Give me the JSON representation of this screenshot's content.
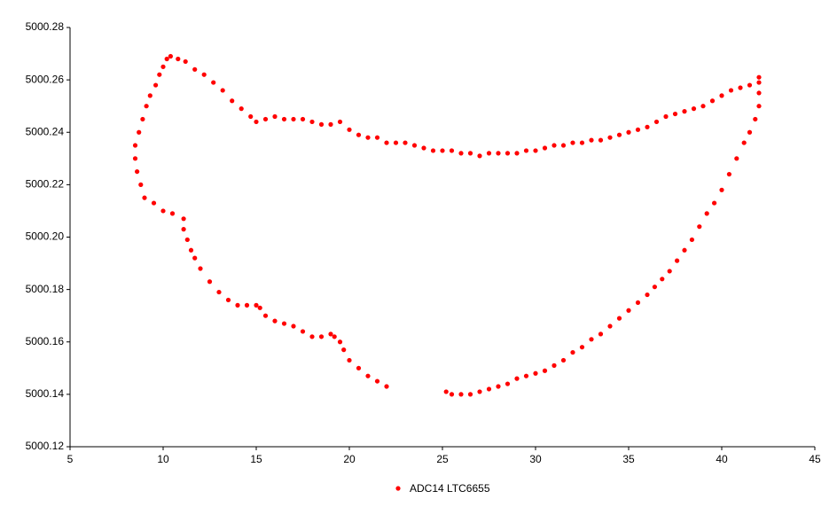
{
  "chart_data": {
    "type": "scatter",
    "xlim": [
      5,
      45
    ],
    "xticks": [
      5,
      10,
      15,
      20,
      25,
      30,
      35,
      40,
      45
    ],
    "ylim": [
      5000.12,
      5000.28
    ],
    "yticks": [
      5000.12,
      5000.14,
      5000.16,
      5000.18,
      {
        "value": 5000.2,
        "label": "5000.20"
      },
      5000.22,
      5000.24,
      5000.26,
      5000.28
    ],
    "grid": false,
    "legend": "bottom",
    "series": [
      {
        "name": "ADC14 LTC6655",
        "color": "#ff0000",
        "x": [
          22,
          21.5,
          21,
          20.5,
          20,
          19.7,
          19.5,
          19.2,
          19,
          18.5,
          18,
          17.5,
          17,
          16.5,
          16,
          15.5,
          15.2,
          15,
          14.5,
          14,
          13.5,
          13,
          12.5,
          12,
          11.7,
          11.5,
          11.3,
          11.1,
          11.1,
          10.5,
          10,
          9.5,
          9,
          8.8,
          8.6,
          8.5,
          8.5,
          8.7,
          8.9,
          9.1,
          9.3,
          9.6,
          9.8,
          10,
          10.2,
          10.4,
          10.8,
          11.2,
          11.7,
          12.2,
          12.7,
          13.2,
          13.7,
          14.2,
          14.7,
          15,
          15.5,
          16,
          16.5,
          17,
          17.5,
          18,
          18.5,
          19,
          19.5,
          20,
          20.5,
          21,
          21.5,
          22,
          22.5,
          23,
          23.5,
          24,
          24.5,
          25,
          25.5,
          26,
          26.5,
          27,
          27.5,
          28,
          28.5,
          29,
          29.5,
          30,
          30.5,
          31,
          31.5,
          32,
          32.5,
          33,
          33.5,
          34,
          34.5,
          35,
          35.5,
          36,
          36.5,
          37,
          37.5,
          38,
          38.5,
          39,
          39.5,
          40,
          40.5,
          41,
          41.5,
          42,
          42,
          42,
          42,
          41.8,
          41.5,
          41.2,
          40.8,
          40.4,
          40,
          39.6,
          39.2,
          38.8,
          38.4,
          38,
          37.6,
          37.2,
          36.8,
          36.4,
          36,
          35.5,
          35,
          34.5,
          34,
          33.5,
          33,
          32.5,
          32,
          31.5,
          31,
          30.5,
          30,
          29.5,
          29,
          28.5,
          28,
          27.5,
          27,
          26.5,
          26,
          25.5,
          25.2
        ],
        "values": [
          5000.143,
          5000.145,
          5000.147,
          5000.15,
          5000.153,
          5000.157,
          5000.16,
          5000.162,
          5000.163,
          5000.162,
          5000.162,
          5000.164,
          5000.166,
          5000.167,
          5000.168,
          5000.17,
          5000.173,
          5000.174,
          5000.174,
          5000.174,
          5000.176,
          5000.179,
          5000.183,
          5000.188,
          5000.192,
          5000.195,
          5000.199,
          5000.203,
          5000.207,
          5000.209,
          5000.21,
          5000.213,
          5000.215,
          5000.22,
          5000.225,
          5000.23,
          5000.235,
          5000.24,
          5000.245,
          5000.25,
          5000.254,
          5000.258,
          5000.262,
          5000.265,
          5000.268,
          5000.269,
          5000.268,
          5000.267,
          5000.264,
          5000.262,
          5000.259,
          5000.256,
          5000.252,
          5000.249,
          5000.246,
          5000.244,
          5000.245,
          5000.246,
          5000.245,
          5000.245,
          5000.245,
          5000.244,
          5000.243,
          5000.243,
          5000.244,
          5000.241,
          5000.239,
          5000.238,
          5000.238,
          5000.236,
          5000.236,
          5000.236,
          5000.235,
          5000.234,
          5000.233,
          5000.233,
          5000.233,
          5000.232,
          5000.232,
          5000.231,
          5000.232,
          5000.232,
          5000.232,
          5000.232,
          5000.233,
          5000.233,
          5000.234,
          5000.235,
          5000.235,
          5000.236,
          5000.236,
          5000.237,
          5000.237,
          5000.238,
          5000.239,
          5000.24,
          5000.241,
          5000.242,
          5000.244,
          5000.246,
          5000.247,
          5000.248,
          5000.249,
          5000.25,
          5000.252,
          5000.254,
          5000.256,
          5000.257,
          5000.258,
          5000.259,
          5000.261,
          5000.255,
          5000.25,
          5000.245,
          5000.24,
          5000.236,
          5000.23,
          5000.224,
          5000.218,
          5000.213,
          5000.209,
          5000.204,
          5000.199,
          5000.195,
          5000.191,
          5000.187,
          5000.184,
          5000.181,
          5000.178,
          5000.175,
          5000.172,
          5000.169,
          5000.166,
          5000.163,
          5000.161,
          5000.158,
          5000.156,
          5000.153,
          5000.151,
          5000.149,
          5000.148,
          5000.147,
          5000.146,
          5000.144,
          5000.143,
          5000.142,
          5000.141,
          5000.14,
          5000.14,
          5000.14,
          5000.141
        ]
      }
    ]
  }
}
